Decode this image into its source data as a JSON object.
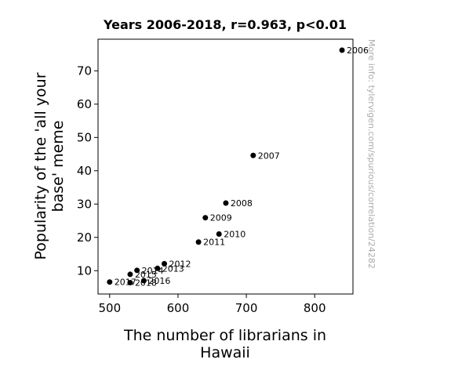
{
  "chart_data": {
    "type": "scatter",
    "title": "Years 2006-2018, r=0.963, p<0.01",
    "xlabel": [
      "The number of librarians in",
      "Hawaii"
    ],
    "ylabel": [
      "Popularity of the 'all your",
      "base' meme"
    ],
    "xlim": [
      483,
      856
    ],
    "ylim": [
      3,
      79.5
    ],
    "xticks": [
      500,
      600,
      700,
      800
    ],
    "yticks": [
      10,
      20,
      30,
      40,
      50,
      60,
      70
    ],
    "grid": false,
    "points": [
      {
        "label": "2006",
        "x": 840,
        "y": 76.2
      },
      {
        "label": "2007",
        "x": 710,
        "y": 44.6
      },
      {
        "label": "2008",
        "x": 670,
        "y": 30.3
      },
      {
        "label": "2009",
        "x": 640,
        "y": 25.9
      },
      {
        "label": "2010",
        "x": 660,
        "y": 21.0
      },
      {
        "label": "2011",
        "x": 630,
        "y": 18.6
      },
      {
        "label": "2012",
        "x": 580,
        "y": 12.1
      },
      {
        "label": "2013",
        "x": 570,
        "y": 10.7
      },
      {
        "label": "2014",
        "x": 540,
        "y": 10.1
      },
      {
        "label": "2015",
        "x": 530,
        "y": 8.9
      },
      {
        "label": "2016",
        "x": 550,
        "y": 7.0
      },
      {
        "label": "2017",
        "x": 500,
        "y": 6.6
      },
      {
        "label": "2018",
        "x": 530,
        "y": 6.4
      }
    ],
    "watermark": "More info: tylervigen.com/spurious/correlation/24282",
    "point_color": "#000000"
  }
}
